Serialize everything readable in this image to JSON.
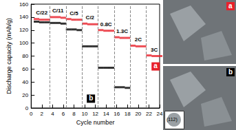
{
  "chart_data": {
    "type": "scatter",
    "x_label": "Cycle number",
    "y_label": "Discharge capacity (mAh/g)",
    "xlim": [
      0,
      24
    ],
    "xticks": [
      0,
      2,
      4,
      6,
      8,
      10,
      12,
      14,
      16,
      18,
      20,
      22,
      24
    ],
    "ylim": [
      0,
      160
    ],
    "yticks": [
      0,
      20,
      40,
      60,
      80,
      100,
      120,
      140,
      160
    ],
    "grid": false,
    "marker": "dash",
    "x": [
      1,
      2,
      3,
      4,
      5,
      6,
      7,
      8,
      9,
      10,
      11,
      12,
      13,
      14,
      15,
      16,
      17,
      18,
      19,
      20,
      21,
      22,
      23,
      24
    ],
    "series": [
      {
        "name": "a",
        "color": "#e8202a",
        "values": [
          137,
          136,
          136,
          140,
          140,
          139,
          137,
          136,
          136,
          130,
          129,
          129,
          120,
          119,
          119,
          109,
          108,
          108,
          96,
          95,
          95,
          81,
          80,
          80
        ]
      },
      {
        "name": "b",
        "color": "#000000",
        "values": [
          133,
          132,
          132,
          131,
          131,
          130,
          121,
          121,
          120,
          95,
          95,
          95,
          62,
          62,
          62,
          32,
          32,
          31,
          null,
          null,
          null,
          null,
          null,
          null
        ]
      }
    ],
    "dividers": [
      3.5,
      6.5,
      9.5,
      12.5,
      15.5,
      18.5,
      21.5
    ],
    "annotations": [
      {
        "text": "C/22",
        "x": 2,
        "y": 147
      },
      {
        "text": "C/11",
        "x": 5,
        "y": 150
      },
      {
        "text": "C/5",
        "x": 8,
        "y": 146
      },
      {
        "text": "C/2",
        "x": 11,
        "y": 139
      },
      {
        "text": "0.8C",
        "x": 14,
        "y": 129
      },
      {
        "text": "1.3C",
        "x": 17,
        "y": 118
      },
      {
        "text": "2C",
        "x": 20,
        "y": 105
      },
      {
        "text": "3C",
        "x": 23,
        "y": 90
      }
    ],
    "images": [
      {
        "label": "a",
        "color": "#e8202a",
        "inset_text": null
      },
      {
        "label": "b",
        "color": "#000000",
        "inset_text": "(112)"
      }
    ]
  }
}
